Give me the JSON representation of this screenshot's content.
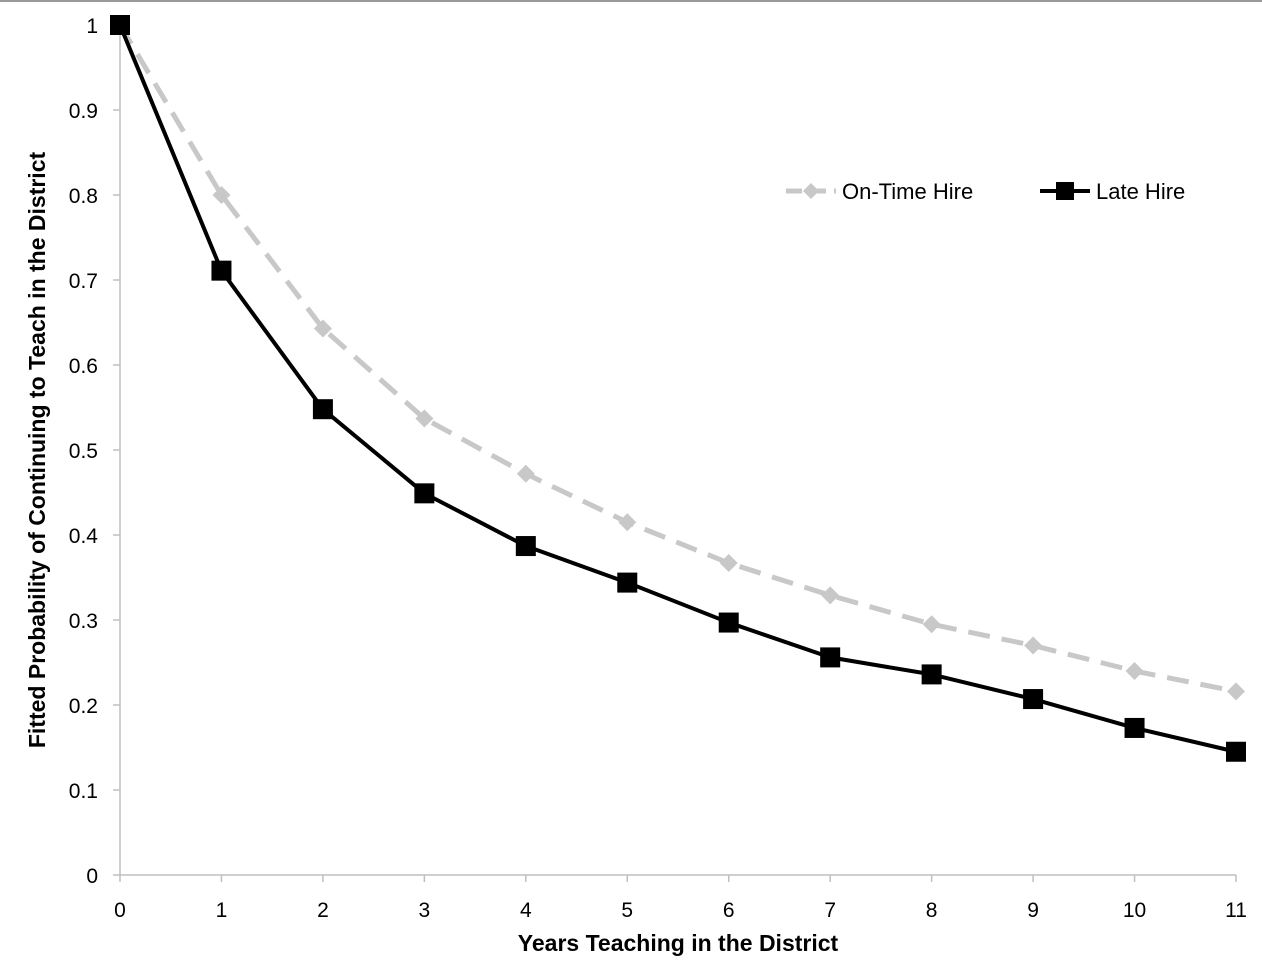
{
  "chart_data": {
    "type": "line",
    "title": "",
    "xlabel": "Years Teaching in the District",
    "ylabel": "Fitted Probability of Continuing to Teach in the District",
    "x": [
      0,
      1,
      2,
      3,
      4,
      5,
      6,
      7,
      8,
      9,
      10,
      11
    ],
    "xlim": [
      0,
      11
    ],
    "ylim": [
      0,
      1
    ],
    "x_ticks": [
      "0",
      "1",
      "2",
      "3",
      "4",
      "5",
      "6",
      "7",
      "8",
      "9",
      "10",
      "11"
    ],
    "y_ticks": [
      "0",
      "0.1",
      "0.2",
      "0.3",
      "0.4",
      "0.5",
      "0.6",
      "0.7",
      "0.8",
      "0.9",
      "1"
    ],
    "grid": false,
    "legend_position": "top-right",
    "series": [
      {
        "name": "On-Time Hire",
        "color": "#c8c8c8",
        "line_style": "dashed",
        "marker": "diamond",
        "values": [
          1.0,
          0.8,
          0.643,
          0.537,
          0.472,
          0.415,
          0.367,
          0.329,
          0.295,
          0.27,
          0.24,
          0.216
        ]
      },
      {
        "name": "Late Hire",
        "color": "#000000",
        "line_style": "solid",
        "marker": "square",
        "values": [
          1.0,
          0.711,
          0.548,
          0.449,
          0.387,
          0.344,
          0.297,
          0.256,
          0.236,
          0.207,
          0.173,
          0.145
        ]
      }
    ]
  }
}
